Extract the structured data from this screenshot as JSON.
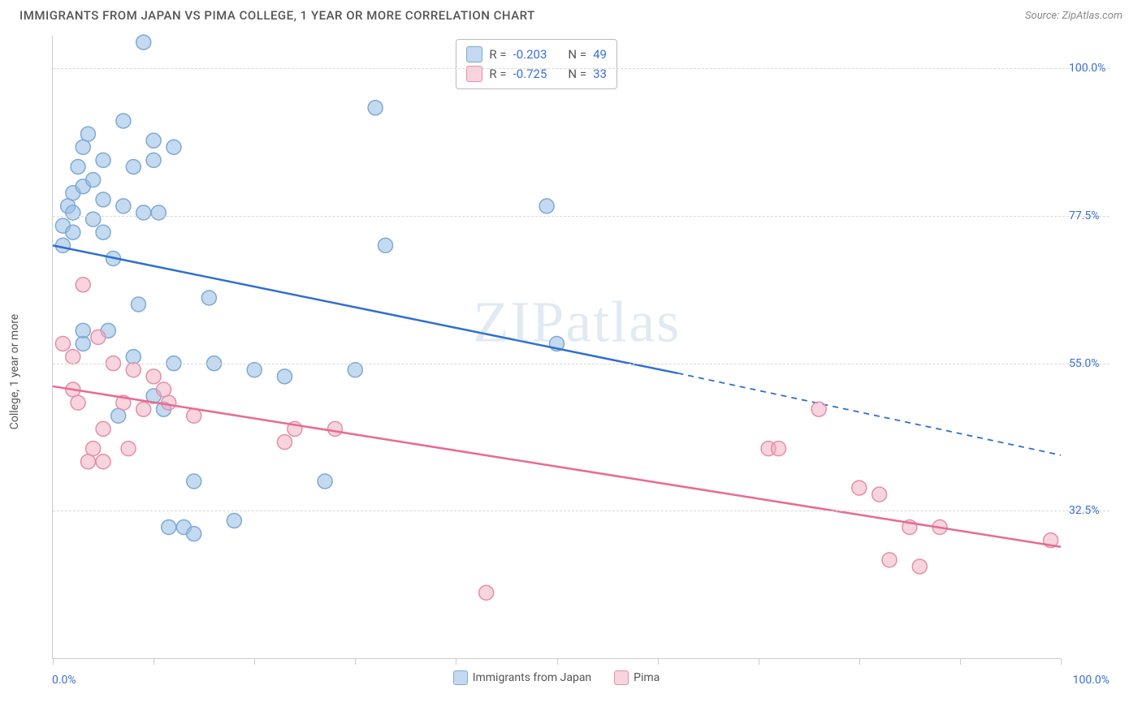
{
  "title": "IMMIGRANTS FROM JAPAN VS PIMA COLLEGE, 1 YEAR OR MORE CORRELATION CHART",
  "source_label": "Source:",
  "source_name": "ZipAtlas.com",
  "ylabel": "College, 1 year or more",
  "watermark": "ZIPatlas",
  "chart": {
    "type": "scatter",
    "background_color": "#ffffff",
    "grid_color": "#d8d8d8",
    "axis_color": "#cccccc",
    "tick_label_color": "#3b6fd6",
    "xlim": [
      0,
      100
    ],
    "ylim": [
      10,
      105
    ],
    "x_ticks": [
      0,
      10,
      20,
      30,
      40,
      50,
      60,
      70,
      80,
      90,
      100
    ],
    "x_tick_labels": {
      "0": "0.0%",
      "100": "100.0%"
    },
    "y_gridlines": [
      32.5,
      55.0,
      77.5,
      100.0
    ],
    "y_tick_labels": [
      "32.5%",
      "55.0%",
      "77.5%",
      "100.0%"
    ],
    "marker_radius": 9,
    "marker_stroke_width": 1.5,
    "line_width": 2.5,
    "series": [
      {
        "name": "Immigrants from Japan",
        "color_fill": "rgba(147,187,227,0.55)",
        "color_stroke": "#7fa9d4",
        "line_color": "#2f6fd0",
        "R": "-0.203",
        "N": "49",
        "regression": {
          "x1": 0,
          "y1": 73,
          "x2": 62,
          "y2": 53.5,
          "extend_x2": 100,
          "extend_y2": 41
        },
        "points": [
          [
            1,
            73
          ],
          [
            1,
            76
          ],
          [
            1.5,
            79
          ],
          [
            2,
            81
          ],
          [
            2,
            78
          ],
          [
            2,
            75
          ],
          [
            2.5,
            85
          ],
          [
            3,
            88
          ],
          [
            3,
            82
          ],
          [
            3.5,
            90
          ],
          [
            3,
            60
          ],
          [
            3,
            58
          ],
          [
            4,
            77
          ],
          [
            4,
            83
          ],
          [
            5,
            86
          ],
          [
            5,
            80
          ],
          [
            5,
            75
          ],
          [
            5.5,
            60
          ],
          [
            6,
            71
          ],
          [
            6.5,
            47
          ],
          [
            7,
            92
          ],
          [
            7,
            79
          ],
          [
            8,
            85
          ],
          [
            8,
            56
          ],
          [
            8.5,
            64
          ],
          [
            9,
            104
          ],
          [
            9,
            78
          ],
          [
            10,
            89
          ],
          [
            10,
            86
          ],
          [
            10,
            50
          ],
          [
            10.5,
            78
          ],
          [
            11,
            48
          ],
          [
            11.5,
            30
          ],
          [
            12,
            88
          ],
          [
            12,
            55
          ],
          [
            13,
            30
          ],
          [
            14,
            37
          ],
          [
            14,
            29
          ],
          [
            15.5,
            65
          ],
          [
            16,
            55
          ],
          [
            18,
            31
          ],
          [
            20,
            54
          ],
          [
            23,
            53
          ],
          [
            27,
            37
          ],
          [
            30,
            54
          ],
          [
            32,
            94
          ],
          [
            33,
            73
          ],
          [
            49,
            79
          ],
          [
            50,
            58
          ]
        ]
      },
      {
        "name": "Pima",
        "color_fill": "rgba(240,170,190,0.5)",
        "color_stroke": "#e48fa8",
        "line_color": "#e86b8f",
        "R": "-0.725",
        "N": "33",
        "regression": {
          "x1": 0,
          "y1": 51.5,
          "x2": 100,
          "y2": 27
        },
        "points": [
          [
            1,
            58
          ],
          [
            2,
            51
          ],
          [
            2,
            56
          ],
          [
            2.5,
            49
          ],
          [
            3,
            67
          ],
          [
            3.5,
            40
          ],
          [
            4,
            42
          ],
          [
            4.5,
            59
          ],
          [
            5,
            40
          ],
          [
            5,
            45
          ],
          [
            6,
            55
          ],
          [
            7,
            49
          ],
          [
            7.5,
            42
          ],
          [
            8,
            54
          ],
          [
            9,
            48
          ],
          [
            10,
            53
          ],
          [
            11,
            51
          ],
          [
            11.5,
            49
          ],
          [
            14,
            47
          ],
          [
            23,
            43
          ],
          [
            24,
            45
          ],
          [
            28,
            45
          ],
          [
            43,
            20
          ],
          [
            71,
            42
          ],
          [
            72,
            42
          ],
          [
            76,
            48
          ],
          [
            80,
            36
          ],
          [
            82,
            35
          ],
          [
            83,
            25
          ],
          [
            85,
            30
          ],
          [
            86,
            24
          ],
          [
            88,
            30
          ],
          [
            99,
            28
          ]
        ]
      }
    ],
    "bottom_legend": [
      {
        "label": "Immigrants from Japan",
        "fill": "rgba(147,187,227,0.55)",
        "stroke": "#7fa9d4"
      },
      {
        "label": "Pima",
        "fill": "rgba(240,170,190,0.5)",
        "stroke": "#e48fa8"
      }
    ]
  }
}
